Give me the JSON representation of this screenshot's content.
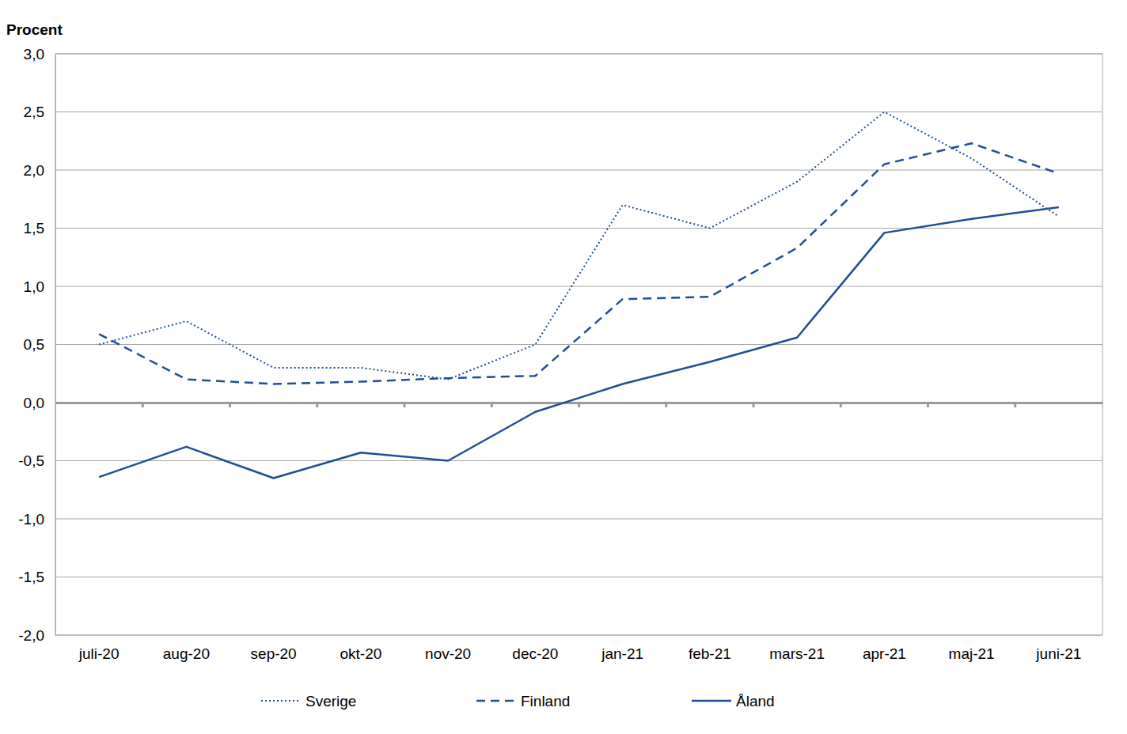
{
  "chart_data": {
    "type": "line",
    "y_label": "Procent",
    "categories": [
      "juli-20",
      "aug-20",
      "sep-20",
      "okt-20",
      "nov-20",
      "dec-20",
      "jan-21",
      "feb-21",
      "mars-21",
      "apr-21",
      "maj-21",
      "juni-21"
    ],
    "series": [
      {
        "name": "Sverige",
        "color": "#1f4e99",
        "line_style": "dotted",
        "values": [
          0.5,
          0.7,
          0.3,
          0.3,
          0.2,
          0.5,
          1.7,
          1.5,
          1.9,
          2.5,
          2.1,
          1.6
        ]
      },
      {
        "name": "Finland",
        "color": "#1f4e99",
        "line_style": "dashed",
        "values": [
          0.59,
          0.2,
          0.16,
          0.18,
          0.21,
          0.23,
          0.89,
          0.91,
          1.33,
          2.05,
          2.23,
          1.97
        ]
      },
      {
        "name": "Åland",
        "color": "#1f4e99",
        "line_style": "solid",
        "values": [
          -0.64,
          -0.38,
          -0.65,
          -0.43,
          -0.5,
          -0.08,
          0.16,
          0.35,
          0.56,
          1.46,
          1.58,
          1.68
        ]
      }
    ],
    "ylim": [
      -2,
      3
    ],
    "yticks": [
      {
        "value": -2,
        "label": "-2,0"
      },
      {
        "value": -1.5,
        "label": "-1,5"
      },
      {
        "value": -1,
        "label": "-1,0"
      },
      {
        "value": -0.5,
        "label": "-0,5"
      },
      {
        "value": 0,
        "label": "0,0"
      },
      {
        "value": 0.5,
        "label": "0,5"
      },
      {
        "value": 1,
        "label": "1,0"
      },
      {
        "value": 1.5,
        "label": "1,5"
      },
      {
        "value": 2,
        "label": "2,0"
      },
      {
        "value": 2.5,
        "label": "2,5"
      },
      {
        "value": 3,
        "label": "3,0"
      }
    ],
    "grid": true,
    "legend": "bottom"
  }
}
